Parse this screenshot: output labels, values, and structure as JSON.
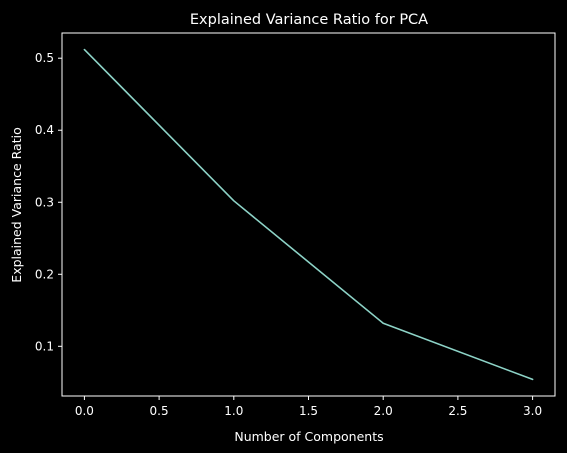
{
  "chart_data": {
    "type": "line",
    "title": "Explained Variance Ratio for PCA",
    "xlabel": "Number of Components",
    "ylabel": "Explained Variance Ratio",
    "x": [
      0,
      1,
      2,
      3
    ],
    "series": [
      {
        "values": [
          0.512,
          0.302,
          0.132,
          0.054
        ]
      }
    ],
    "xlim": [
      -0.15,
      3.15
    ],
    "ylim": [
      0.031,
      0.535
    ],
    "xticks": [
      0.0,
      0.5,
      1.0,
      1.5,
      2.0,
      2.5,
      3.0
    ],
    "xtick_labels": [
      "0.0",
      "0.5",
      "1.0",
      "1.5",
      "2.0",
      "2.5",
      "3.0"
    ],
    "yticks": [
      0.1,
      0.2,
      0.3,
      0.4,
      0.5
    ],
    "ytick_labels": [
      "0.1",
      "0.2",
      "0.3",
      "0.4",
      "0.5"
    ],
    "grid": false,
    "legend": "none",
    "colors": {
      "background": "#000000",
      "axes": "#ffffff",
      "text": "#ffffff",
      "line": "#8dd3c7"
    }
  }
}
